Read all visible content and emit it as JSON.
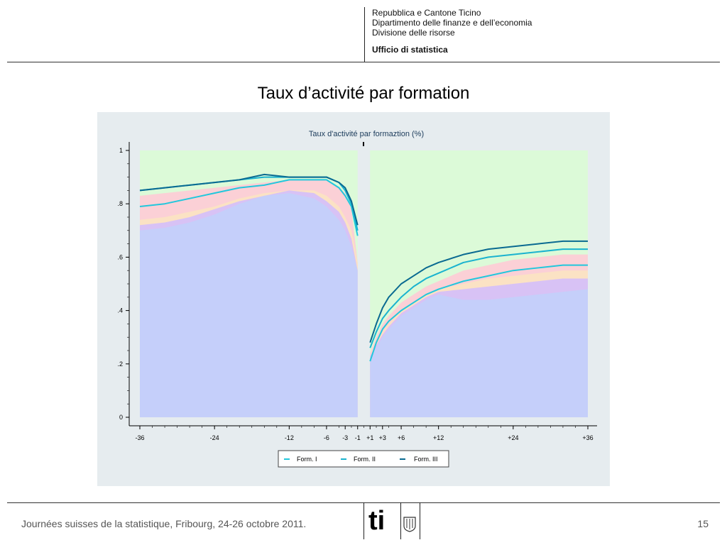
{
  "header": {
    "lines": [
      "Repubblica e Cantone Ticino",
      "Dipartimento delle finanze e dell’economia",
      "Divisione delle risorse"
    ],
    "office": "Ufficio di statistica"
  },
  "slide": {
    "title": "Taux d’activité par formation"
  },
  "footer": {
    "text": "Journées suisses de la statistique, Fribourg, 24-26 octobre 2011.",
    "page_number": "15",
    "logo_text": "ti"
  },
  "colors": {
    "panel_bg": "#e6ecef",
    "form_i": "#22c7dc",
    "form_ii": "#1ab3cf",
    "form_iii": "#0a6a91",
    "band_blue": "#c5cffa",
    "band_purple": "#d8c2f5",
    "band_yellow": "#fbe2c4",
    "band_pink": "#fbd0d6",
    "band_green": "#dcfad8"
  },
  "chart_data": {
    "type": "line",
    "title": "Taux d'activité par formaztion (%)",
    "x_tick_labels": [
      "-36",
      "-24",
      "-12",
      "-6",
      "-3",
      "-1",
      "+1",
      "+3",
      "+6",
      "+12",
      "+24",
      "+36"
    ],
    "x_tick_values": [
      -36,
      -24,
      -12,
      -6,
      -3,
      -1,
      1,
      3,
      6,
      12,
      24,
      36
    ],
    "y_tick_labels": [
      "0",
      ".2",
      ".4",
      ".6",
      ".8",
      "1"
    ],
    "y_tick_values": [
      0,
      0.2,
      0.4,
      0.6,
      0.8,
      1
    ],
    "ylim": [
      0,
      1
    ],
    "xlim": [
      -37,
      37
    ],
    "grid": false,
    "legend_position": "bottom",
    "series": [
      {
        "name": "Form. I",
        "x": [
          -36,
          -32,
          -28,
          -24,
          -20,
          -16,
          -12,
          -8,
          -6,
          -4,
          -3,
          -2,
          -1
        ],
        "y": [
          0.79,
          0.8,
          0.82,
          0.84,
          0.86,
          0.87,
          0.89,
          0.89,
          0.89,
          0.86,
          0.83,
          0.79,
          0.68
        ]
      },
      {
        "name": "Form. II",
        "x": [
          -36,
          -32,
          -28,
          -24,
          -20,
          -16,
          -12,
          -8,
          -6,
          -4,
          -3,
          -2,
          -1
        ],
        "y": [
          0.85,
          0.86,
          0.87,
          0.88,
          0.89,
          0.9,
          0.9,
          0.9,
          0.9,
          0.88,
          0.85,
          0.8,
          0.7
        ]
      },
      {
        "name": "Form. III",
        "x": [
          -36,
          -32,
          -28,
          -24,
          -20,
          -16,
          -12,
          -8,
          -6,
          -4,
          -3,
          -2,
          -1
        ],
        "y": [
          0.85,
          0.86,
          0.87,
          0.88,
          0.89,
          0.91,
          0.9,
          0.9,
          0.9,
          0.88,
          0.86,
          0.81,
          0.72
        ]
      },
      {
        "name": "Form. I",
        "x": [
          1,
          2,
          3,
          4,
          6,
          8,
          10,
          12,
          16,
          20,
          24,
          28,
          32,
          36
        ],
        "y": [
          0.21,
          0.28,
          0.33,
          0.36,
          0.4,
          0.43,
          0.46,
          0.48,
          0.51,
          0.53,
          0.55,
          0.56,
          0.57,
          0.57
        ]
      },
      {
        "name": "Form. II",
        "x": [
          1,
          2,
          3,
          4,
          6,
          8,
          10,
          12,
          16,
          20,
          24,
          28,
          32,
          36
        ],
        "y": [
          0.26,
          0.32,
          0.37,
          0.4,
          0.45,
          0.49,
          0.52,
          0.54,
          0.58,
          0.6,
          0.61,
          0.62,
          0.63,
          0.63
        ]
      },
      {
        "name": "Form. III",
        "x": [
          1,
          2,
          3,
          4,
          6,
          8,
          10,
          12,
          16,
          20,
          24,
          28,
          32,
          36
        ],
        "y": [
          0.28,
          0.35,
          0.41,
          0.45,
          0.5,
          0.53,
          0.56,
          0.58,
          0.61,
          0.63,
          0.64,
          0.65,
          0.66,
          0.66
        ]
      }
    ],
    "bands": [
      {
        "color_key": "band_green",
        "x": [
          -36,
          -1,
          1,
          36
        ],
        "upper": [
          1,
          1,
          1,
          1
        ]
      },
      {
        "color_key": "band_pink",
        "x": [
          -36,
          -32,
          -28,
          -24,
          -20,
          -16,
          -12,
          -8,
          -6,
          -4,
          -3,
          -2,
          -1,
          1,
          2,
          3,
          4,
          6,
          8,
          10,
          12,
          16,
          20,
          24,
          28,
          32,
          36
        ],
        "upper": [
          0.83,
          0.84,
          0.85,
          0.86,
          0.87,
          0.88,
          0.89,
          0.89,
          0.89,
          0.86,
          0.84,
          0.78,
          0.58,
          0.24,
          0.3,
          0.35,
          0.38,
          0.43,
          0.46,
          0.49,
          0.51,
          0.55,
          0.57,
          0.59,
          0.6,
          0.61,
          0.61
        ]
      },
      {
        "color_key": "band_yellow",
        "x": [
          -36,
          -32,
          -28,
          -24,
          -20,
          -16,
          -12,
          -8,
          -6,
          -4,
          -3,
          -2,
          -1,
          1,
          2,
          3,
          4,
          6,
          8,
          10,
          12,
          16,
          20,
          24,
          28,
          32,
          36
        ],
        "upper": [
          0.74,
          0.75,
          0.77,
          0.79,
          0.82,
          0.84,
          0.85,
          0.85,
          0.83,
          0.79,
          0.75,
          0.7,
          0.58,
          0.23,
          0.28,
          0.32,
          0.35,
          0.4,
          0.43,
          0.46,
          0.48,
          0.5,
          0.52,
          0.53,
          0.54,
          0.55,
          0.55
        ]
      },
      {
        "color_key": "band_purple",
        "x": [
          -36,
          -32,
          -28,
          -24,
          -20,
          -16,
          -12,
          -8,
          -6,
          -4,
          -3,
          -2,
          -1,
          1,
          2,
          3,
          4,
          6,
          8,
          10,
          12,
          16,
          20,
          24,
          28,
          32,
          36
        ],
        "upper": [
          0.72,
          0.73,
          0.75,
          0.78,
          0.81,
          0.83,
          0.85,
          0.84,
          0.81,
          0.77,
          0.73,
          0.67,
          0.55,
          0.23,
          0.27,
          0.31,
          0.34,
          0.39,
          0.42,
          0.45,
          0.47,
          0.48,
          0.49,
          0.5,
          0.51,
          0.52,
          0.52
        ]
      },
      {
        "color_key": "band_blue",
        "x": [
          -36,
          -32,
          -28,
          -24,
          -20,
          -16,
          -12,
          -8,
          -6,
          -4,
          -3,
          -2,
          -1,
          1,
          2,
          3,
          4,
          6,
          8,
          10,
          12,
          16,
          20,
          24,
          28,
          32,
          36
        ],
        "upper": [
          0.7,
          0.71,
          0.73,
          0.76,
          0.8,
          0.83,
          0.84,
          0.82,
          0.79,
          0.74,
          0.7,
          0.64,
          0.55,
          0.22,
          0.26,
          0.3,
          0.33,
          0.38,
          0.41,
          0.44,
          0.46,
          0.44,
          0.44,
          0.45,
          0.46,
          0.47,
          0.48
        ]
      }
    ]
  }
}
